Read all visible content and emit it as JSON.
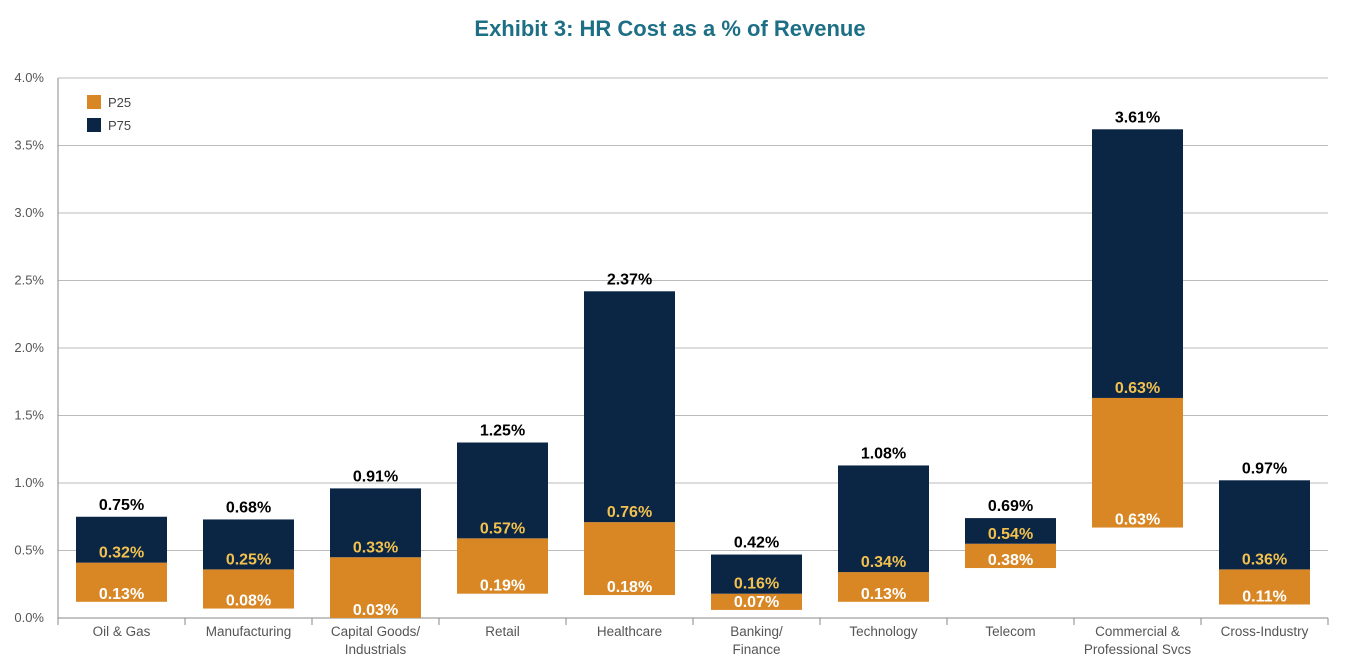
{
  "chart_data": {
    "type": "bar",
    "title": "Exhibit 3: HR Cost as a % of Revenue",
    "ylim": [
      0,
      4.0
    ],
    "y_ticks": [
      "0.0%",
      "0.5%",
      "1.0%",
      "1.5%",
      "2.0%",
      "2.5%",
      "3.0%",
      "3.5%",
      "4.0%"
    ],
    "grid": true,
    "legend_position": "top-left",
    "colors": {
      "P25": "#d98725",
      "P75": "#0b2545",
      "axis": "#888888",
      "grid": "#bbbbbb",
      "title": "#1d6f86"
    },
    "series": [
      {
        "name": "P25"
      },
      {
        "name": "P75"
      }
    ],
    "categories": [
      {
        "label": [
          "Oil & Gas"
        ],
        "base": 0.12,
        "p25_top": 0.41,
        "p75_top": 0.75,
        "low_label": "0.13%",
        "mid_label": "0.32%",
        "top_label": "0.75%"
      },
      {
        "label": [
          "Manufacturing"
        ],
        "base": 0.07,
        "p25_top": 0.36,
        "p75_top": 0.73,
        "low_label": "0.08%",
        "mid_label": "0.25%",
        "top_label": "0.68%"
      },
      {
        "label": [
          "Capital Goods/",
          "Industrials"
        ],
        "base": 0.0,
        "p25_top": 0.45,
        "p75_top": 0.96,
        "low_label": "0.03%",
        "mid_label": "0.33%",
        "top_label": "0.91%"
      },
      {
        "label": [
          "Retail"
        ],
        "base": 0.18,
        "p25_top": 0.59,
        "p75_top": 1.3,
        "low_label": "0.19%",
        "mid_label": "0.57%",
        "top_label": "1.25%"
      },
      {
        "label": [
          "Healthcare"
        ],
        "base": 0.17,
        "p25_top": 0.71,
        "p75_top": 2.42,
        "low_label": "0.18%",
        "mid_label": "0.76%",
        "top_label": "2.37%"
      },
      {
        "label": [
          "Banking/",
          "Finance"
        ],
        "base": 0.06,
        "p25_top": 0.18,
        "p75_top": 0.47,
        "low_label": "0.07%",
        "mid_label": "0.16%",
        "top_label": "0.42%"
      },
      {
        "label": [
          "Technology"
        ],
        "base": 0.12,
        "p25_top": 0.34,
        "p75_top": 1.13,
        "low_label": "0.13%",
        "mid_label": "0.34%",
        "top_label": "1.08%"
      },
      {
        "label": [
          "Telecom"
        ],
        "base": 0.37,
        "p25_top": 0.55,
        "p75_top": 0.74,
        "low_label": "0.38%",
        "mid_label": "0.54%",
        "top_label": "0.69%"
      },
      {
        "label": [
          "Commercial &",
          "Professional Svcs"
        ],
        "base": 0.67,
        "p25_top": 1.63,
        "p75_top": 3.62,
        "low_label": "0.63%",
        "mid_label": "0.63%",
        "top_label": "3.61%"
      },
      {
        "label": [
          "Cross-Industry"
        ],
        "base": 0.1,
        "p25_top": 0.36,
        "p75_top": 1.02,
        "low_label": "0.11%",
        "mid_label": "0.36%",
        "top_label": "0.97%"
      }
    ]
  }
}
